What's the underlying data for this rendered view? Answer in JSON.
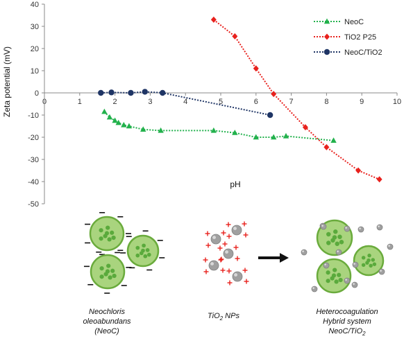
{
  "chart_data": {
    "type": "line",
    "title": "",
    "xlabel": "pH",
    "ylabel": "Zeta potential (mV)",
    "xlim": [
      0,
      10
    ],
    "ylim": [
      -50,
      40
    ],
    "x_ticks": [
      0,
      1,
      2,
      3,
      4,
      5,
      6,
      7,
      8,
      9,
      10
    ],
    "y_ticks": [
      40,
      30,
      20,
      10,
      0,
      -10,
      -20,
      -30,
      -40,
      -50
    ],
    "grid": false,
    "legend_position": "top-right",
    "series": [
      {
        "name": "NeoC",
        "color": "#22b14c",
        "marker": "triangle",
        "x": [
          1.7,
          1.85,
          2.0,
          2.1,
          2.25,
          2.4,
          2.8,
          3.3,
          4.8,
          5.4,
          6.0,
          6.5,
          6.85,
          8.2
        ],
        "y": [
          -8.5,
          -11.0,
          -12.5,
          -13.5,
          -14.5,
          -15.0,
          -16.5,
          -17.0,
          -17.0,
          -18.0,
          -20.0,
          -20.0,
          -19.5,
          -21.5
        ]
      },
      {
        "name": "TiO2 P25",
        "color": "#e8211d",
        "marker": "diamond",
        "x": [
          4.8,
          5.4,
          6.0,
          6.5,
          7.4,
          8.0,
          8.9,
          9.5
        ],
        "y": [
          33.0,
          25.5,
          11.0,
          -0.5,
          -15.5,
          -24.5,
          -35.0,
          -39.0
        ]
      },
      {
        "name": "NeoC/TiO2",
        "color": "#1f3565",
        "marker": "circle",
        "x": [
          1.6,
          1.9,
          2.45,
          2.85,
          3.35,
          6.4
        ],
        "y": [
          0.0,
          0.2,
          0.0,
          0.5,
          0.0,
          -10.0
        ]
      }
    ]
  },
  "illustration": {
    "label_neoc_line1": "Neochloris",
    "label_neoc_line2": "oleoabundans",
    "label_neoc_line3": "(NeoC)",
    "label_tio2_main": "TiO",
    "label_tio2_sub": "2",
    "label_tio2_tail": " NPs",
    "label_hybrid_line1": "Heterocoagulation",
    "label_hybrid_line2": "Hybrid system",
    "label_hybrid_line3_main": "NeoC/TiO",
    "label_hybrid_line3_sub": "2",
    "cell_fill": "#a9d47e",
    "cell_stroke": "#6aab3c",
    "nucleus_color": "#5aaa3c",
    "particle_color": "#a0a0a0",
    "charge_plus_color": "#e8211d",
    "charge_minus_color": "#111111"
  }
}
